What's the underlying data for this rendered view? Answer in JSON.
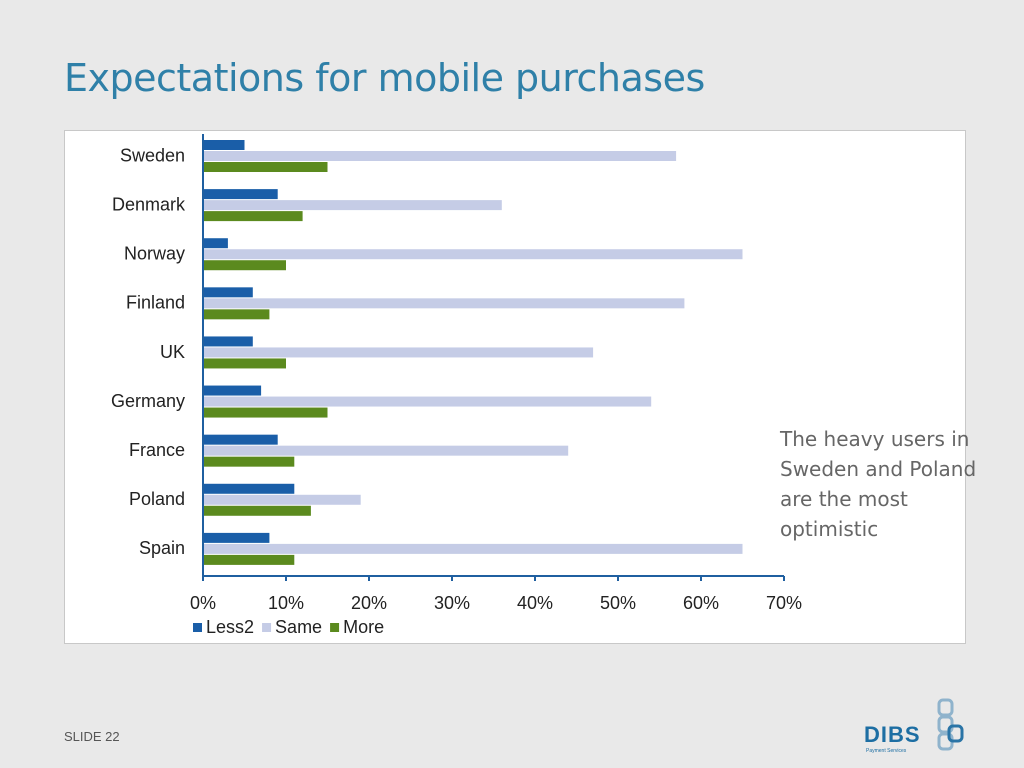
{
  "slide": {
    "title": "Expectations for mobile purchases",
    "annotation": "The heavy users in Sweden and Poland are the most optimistic",
    "slide_number": "SLIDE 22",
    "logo": {
      "text": "DIBS",
      "tagline": "Payment Services"
    }
  },
  "colors": {
    "title": "#2f80a8",
    "axis": "#1f5fa0",
    "Less2": "#1a5ea8",
    "Same": "#c5cce6",
    "More": "#5b8a1e"
  },
  "chart_data": {
    "type": "bar",
    "orientation": "horizontal",
    "categories": [
      "Sweden",
      "Denmark",
      "Norway",
      "Finland",
      "UK",
      "Germany",
      "France",
      "Poland",
      "Spain"
    ],
    "series": [
      {
        "name": "Less2",
        "values": [
          5,
          9,
          3,
          6,
          6,
          7,
          9,
          11,
          8
        ]
      },
      {
        "name": "Same",
        "values": [
          57,
          36,
          65,
          58,
          47,
          54,
          44,
          19,
          65
        ]
      },
      {
        "name": "More",
        "values": [
          15,
          12,
          10,
          8,
          10,
          15,
          11,
          13,
          11
        ]
      }
    ],
    "xlim": [
      0,
      70
    ],
    "xticks": [
      "0%",
      "10%",
      "20%",
      "30%",
      "40%",
      "50%",
      "60%",
      "70%"
    ],
    "unit": "%",
    "grid": false,
    "legend_position": "bottom-left"
  }
}
